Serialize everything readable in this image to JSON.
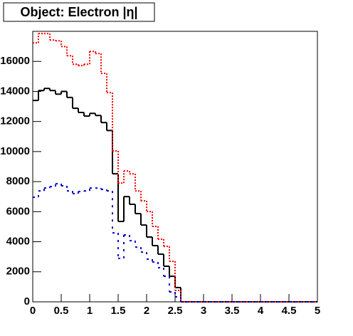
{
  "chart_data": {
    "type": "histogram",
    "title": "Object: Electron |η|",
    "bins": [
      0,
      0.1,
      0.2,
      0.3,
      0.4,
      0.5,
      0.6,
      0.7,
      0.8,
      0.9,
      1,
      1.1,
      1.2,
      1.3,
      1.4,
      1.5,
      1.6,
      1.7,
      1.8,
      1.9,
      2,
      2.1,
      2.2,
      2.3,
      2.4,
      2.5,
      2.6,
      2.7,
      2.8,
      2.9,
      3,
      3.1,
      3.2,
      3.3,
      3.4,
      3.5,
      3.6,
      3.7,
      3.8,
      3.9,
      4,
      4.1,
      4.2,
      4.3,
      4.4,
      4.5,
      4.6,
      4.7,
      4.8,
      4.9,
      5
    ],
    "series": [
      {
        "color": "#000000",
        "line_style": "solid",
        "values": [
          13400,
          14060,
          14200,
          14060,
          13820,
          14000,
          13600,
          12880,
          12600,
          12360,
          12540,
          12400,
          11930,
          11400,
          8520,
          5350,
          7000,
          6490,
          5870,
          5110,
          4310,
          3740,
          3170,
          2370,
          1700,
          950,
          0,
          0,
          0,
          0,
          0,
          0,
          0,
          0,
          0,
          0,
          0,
          0,
          0,
          0,
          0,
          0,
          0,
          0,
          0,
          0,
          0,
          0,
          0,
          0
        ]
      },
      {
        "color": "#ff0000",
        "line_style": "dotted",
        "values": [
          17230,
          17850,
          17850,
          17420,
          17370,
          16990,
          16380,
          15810,
          15720,
          15810,
          16660,
          16520,
          15200,
          13920,
          10040,
          7900,
          8710,
          8520,
          7380,
          6720,
          6010,
          5020,
          4170,
          3690,
          2700,
          760,
          0,
          0,
          0,
          0,
          0,
          0,
          0,
          0,
          0,
          0,
          0,
          0,
          0,
          0,
          0,
          0,
          0,
          0,
          0,
          0,
          0,
          0,
          0,
          0
        ]
      },
      {
        "color": "#0000cc",
        "line_style": "dashed",
        "values": [
          6960,
          7380,
          7570,
          7670,
          7860,
          7720,
          7380,
          7200,
          7340,
          7380,
          7570,
          7570,
          7480,
          7380,
          4590,
          2890,
          4450,
          4070,
          3640,
          3310,
          2840,
          2650,
          2270,
          1700,
          660,
          330,
          0,
          0,
          0,
          0,
          0,
          0,
          0,
          0,
          0,
          0,
          0,
          0,
          0,
          0,
          0,
          0,
          0,
          0,
          0,
          0,
          0,
          0,
          0,
          0
        ]
      }
    ],
    "xlim": [
      0,
      5
    ],
    "xticks": [
      0,
      0.5,
      1,
      1.5,
      2,
      2.5,
      3,
      3.5,
      4,
      4.5,
      5
    ],
    "ylim": [
      0,
      18000
    ],
    "yticks": [
      0,
      2000,
      4000,
      6000,
      8000,
      10000,
      12000,
      14000,
      16000
    ]
  }
}
